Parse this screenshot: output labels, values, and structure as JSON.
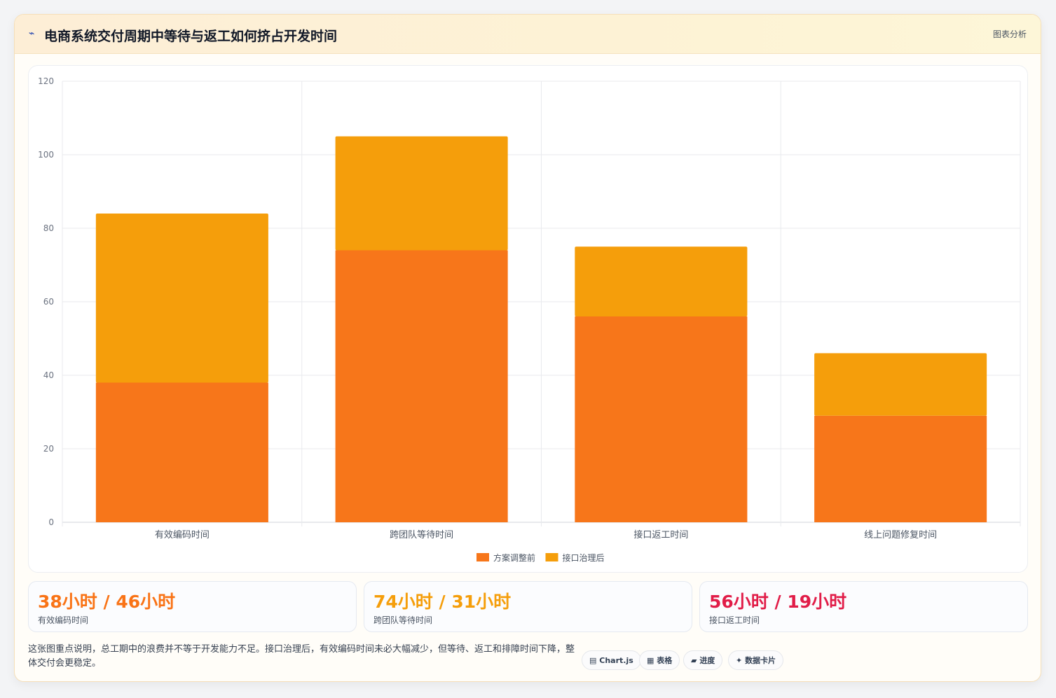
{
  "header": {
    "icon": "trend-icon",
    "title": "电商系统交付周期中等待与返工如何挤占开发时间",
    "tag": "图表分析"
  },
  "chart_data": {
    "type": "bar",
    "stacked": true,
    "categories": [
      "有效编码时间",
      "跨团队等待时间",
      "接口返工时间",
      "线上问题修复时间"
    ],
    "series": [
      {
        "name": "方案调整前",
        "values": [
          38,
          74,
          56,
          29
        ],
        "color": "#f7761a"
      },
      {
        "name": "接口治理后",
        "values": [
          46,
          31,
          19,
          17
        ],
        "color": "#f59e0b"
      }
    ],
    "ylim": [
      0,
      120
    ],
    "yticks": [
      0,
      20,
      40,
      60,
      80,
      100,
      120
    ],
    "grid": true,
    "legend": "bottom"
  },
  "stats": [
    {
      "value": "38小时 / 46小时",
      "label": "有效编码时间",
      "color": "#f97316"
    },
    {
      "value": "74小时 / 31小时",
      "label": "跨团队等待时间",
      "color": "#f59e0b"
    },
    {
      "value": "56小时 / 19小时",
      "label": "接口返工时间",
      "color": "#e11d48"
    }
  ],
  "footer": {
    "note": "这张图重点说明，总工期中的浪费并不等于开发能力不足。接口治理后，有效编码时间未必大幅减少，但等待、返工和排障时间下降，整体交付会更稳定。",
    "pills": [
      {
        "icon": "chart-icon",
        "glyph": "▤",
        "label": "Chart.js"
      },
      {
        "icon": "table-icon",
        "glyph": "▦",
        "label": "表格"
      },
      {
        "icon": "progress-icon",
        "glyph": "▰",
        "label": "进度"
      },
      {
        "icon": "sparkle-icon",
        "glyph": "✦",
        "label": "数据卡片"
      }
    ]
  }
}
